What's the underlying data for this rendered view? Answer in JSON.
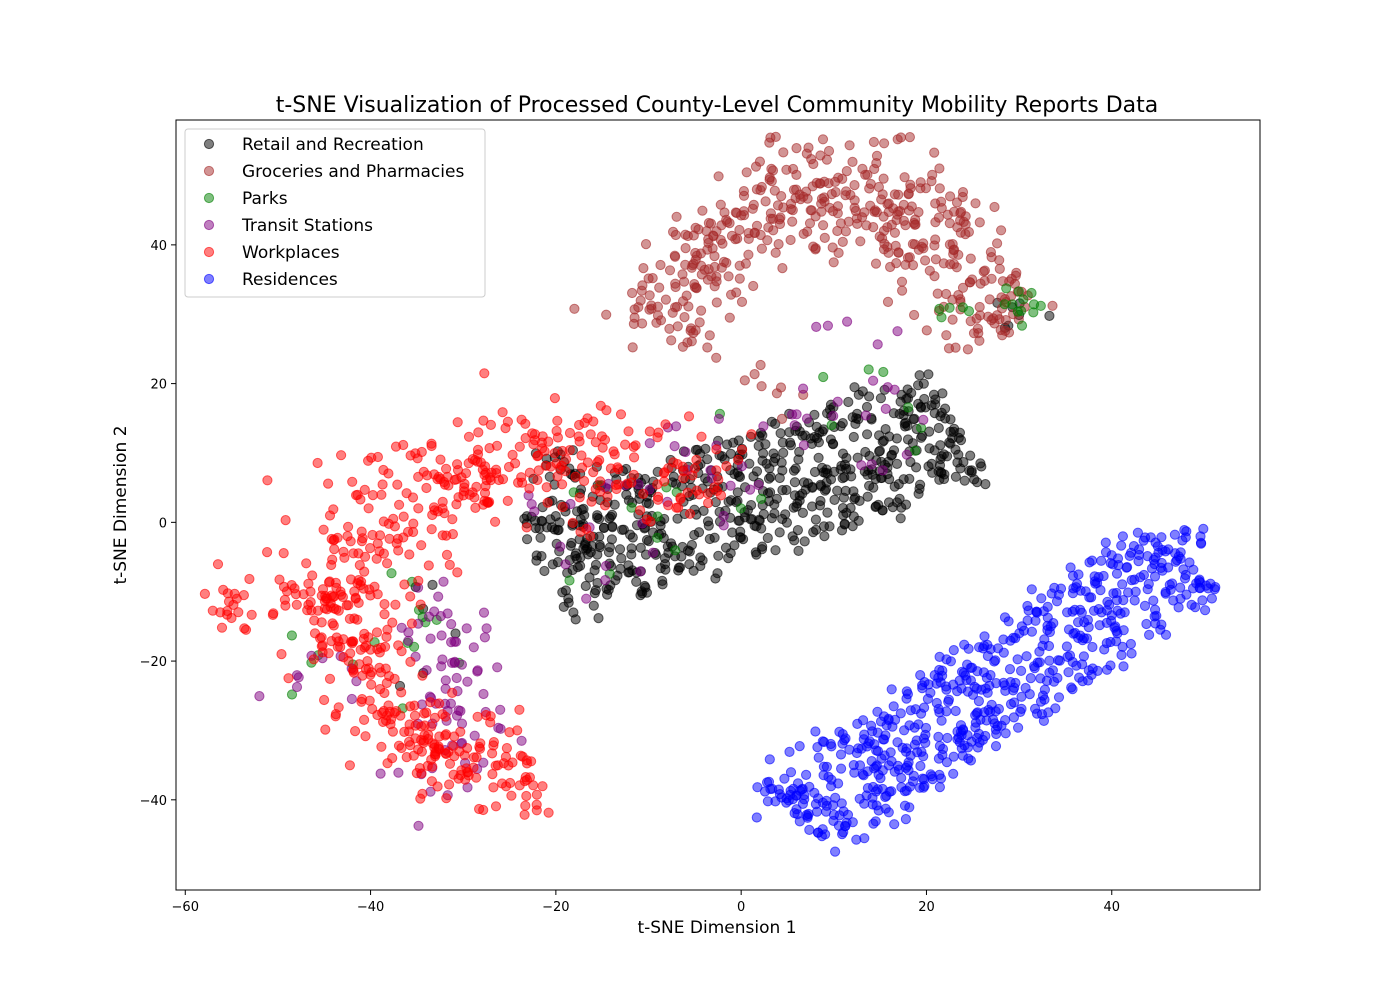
{
  "chart_data": {
    "type": "scatter",
    "title": "t-SNE Visualization of Processed County-Level Community Mobility Reports Data",
    "xlabel": "t-SNE Dimension 1",
    "ylabel": "t-SNE Dimension 2",
    "xlim": [
      -61,
      56
    ],
    "ylim": [
      -53,
      58
    ],
    "xticks": [
      -60,
      -40,
      -20,
      0,
      20,
      40
    ],
    "yticks": [
      -40,
      -20,
      0,
      20,
      40
    ],
    "xtick_labels": [
      "−60",
      "−40",
      "−20",
      "0",
      "20",
      "40"
    ],
    "ytick_labels": [
      "−40",
      "−20",
      "0",
      "20",
      "40"
    ],
    "grid": false,
    "legend_position": "upper-left",
    "series": [
      {
        "name": "Retail and Recreation",
        "color": "#000000",
        "clusters": [
          {
            "count": 620,
            "shape": "band",
            "start": [
              -22,
              -6
            ],
            "end": [
              24,
              14
            ],
            "width": 17
          },
          {
            "count": 18,
            "shape": "blob",
            "center": [
              -19,
              8
            ],
            "spread": [
              2,
              1.8
            ]
          },
          {
            "count": 7,
            "shape": "blob",
            "center": [
              29,
              31
            ],
            "spread": [
              2,
              2
            ]
          },
          {
            "count": 6,
            "shape": "blob",
            "center": [
              -34,
              -14
            ],
            "spread": [
              2,
              6
            ]
          }
        ]
      },
      {
        "name": "Groceries and Pharmacies",
        "color": "#a52a2a",
        "clusters": [
          {
            "count": 440,
            "shape": "arc",
            "center": [
              10,
              12
            ],
            "rx": 20.5,
            "ry": 35,
            "a0": 155,
            "a1": 25,
            "thickness": 4.5
          },
          {
            "count": 10,
            "shape": "blob",
            "center": [
              -12,
              30
            ],
            "spread": [
              2,
              2
            ]
          },
          {
            "count": 8,
            "shape": "blob",
            "center": [
              3,
              21
            ],
            "spread": [
              4,
              3
            ]
          }
        ]
      },
      {
        "name": "Parks",
        "color": "#008000",
        "clusters": [
          {
            "count": 12,
            "shape": "blob",
            "center": [
              31,
              31.5
            ],
            "spread": [
              1.5,
              1
            ]
          },
          {
            "count": 5,
            "shape": "blob",
            "center": [
              23,
              30
            ],
            "spread": [
              2,
              1
            ]
          },
          {
            "count": 20,
            "shape": "band",
            "start": [
              -22,
              -5
            ],
            "end": [
              25,
              22
            ],
            "width": 14
          },
          {
            "count": 12,
            "shape": "blob",
            "center": [
              -33,
              -17
            ],
            "spread": [
              4,
              7
            ]
          },
          {
            "count": 4,
            "shape": "blob",
            "center": [
              -47,
              -20
            ],
            "spread": [
              3,
              3
            ]
          }
        ]
      },
      {
        "name": "Transit Stations",
        "color": "#800080",
        "clusters": [
          {
            "count": 75,
            "shape": "blob",
            "center": [
              -31,
              -24
            ],
            "spread": [
              2.8,
              7
            ]
          },
          {
            "count": 55,
            "shape": "band",
            "start": [
              -22,
              -4
            ],
            "end": [
              20,
              20
            ],
            "width": 17
          },
          {
            "count": 9,
            "shape": "blob",
            "center": [
              -47,
              -22
            ],
            "spread": [
              2.5,
              2.5
            ]
          },
          {
            "count": 4,
            "shape": "blob",
            "center": [
              12,
              28
            ],
            "spread": [
              4,
              1.5
            ]
          }
        ]
      },
      {
        "name": "Workplaces",
        "color": "#ff0000",
        "clusters": [
          {
            "count": 360,
            "shape": "arc",
            "center": [
              -20,
              -12
            ],
            "rx": 24,
            "ry": 21,
            "a0": 45,
            "a1": 185,
            "thickness": 4.5
          },
          {
            "count": 190,
            "shape": "arc",
            "center": [
              -26,
              -12
            ],
            "rx": 16,
            "ry": 23,
            "a0": 190,
            "a1": 285,
            "thickness": 3.5
          },
          {
            "count": 40,
            "shape": "blob",
            "center": [
              -44,
              -14
            ],
            "spread": [
              3,
              3.5
            ]
          },
          {
            "count": 18,
            "shape": "blob",
            "center": [
              -55,
              -12
            ],
            "spread": [
              1.2,
              2.2
            ]
          },
          {
            "count": 18,
            "shape": "blob",
            "center": [
              -32,
              -33
            ],
            "spread": [
              1.8,
              1.2
            ]
          }
        ]
      },
      {
        "name": "Residences",
        "color": "#0000ff",
        "clusters": [
          {
            "count": 600,
            "shape": "band",
            "start": [
              6,
              -43
            ],
            "end": [
              48,
              -5
            ],
            "width": 13
          },
          {
            "count": 10,
            "shape": "blob",
            "center": [
              49,
              -3
            ],
            "spread": [
              1.2,
              1.2
            ]
          },
          {
            "count": 8,
            "shape": "blob",
            "center": [
              5,
              -37
            ],
            "spread": [
              2,
              3
            ]
          }
        ]
      }
    ]
  }
}
